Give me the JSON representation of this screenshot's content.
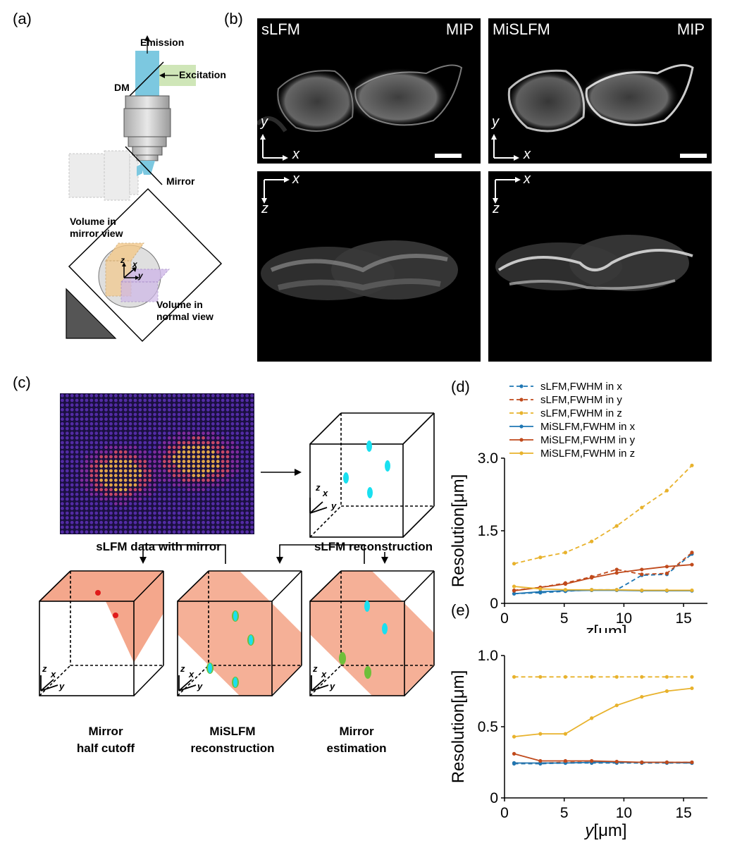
{
  "panels": {
    "a": "(a)",
    "b": "(b)",
    "c": "(c)",
    "d": "(d)",
    "e": "(e)"
  },
  "a": {
    "emission": "Emission",
    "excitation": "Excitation",
    "dm": "DM",
    "mirror": "Mirror",
    "vol_mirror": "Volume in\nmirror view",
    "vol_normal": "Volume in\nnormal view",
    "ax_z": "z",
    "ax_x": "x",
    "ax_y": "y"
  },
  "b": {
    "slfm": "sLFM",
    "mislfm": "MiSLFM",
    "mip": "MIP",
    "ax_x": "x",
    "ax_y": "y",
    "ax_z": "z"
  },
  "c": {
    "data_caption": "sLFM data with mirror",
    "recon_caption": "sLFM reconstruction",
    "cutoff_caption_1": "Mirror",
    "cutoff_caption_2": "half cutoff",
    "mislfm_caption_1": "MiSLFM",
    "mislfm_caption_2": "reconstruction",
    "est_caption_1": "Mirror",
    "est_caption_2": "estimation",
    "ax_z": "z",
    "ax_x": "x",
    "ax_y": "y"
  },
  "colors": {
    "blue": "#1f77b4",
    "orange": "#c04a1c",
    "gold": "#e8b22c",
    "cyan": "#19e0f0",
    "green": "#6fbf3a",
    "salmon": "#f4a78c",
    "red": "#e01a1a"
  },
  "chart_data": [
    {
      "type": "line",
      "xlabel": "z[μm]",
      "ylabel": "Resolution[μm]",
      "xlim": [
        0,
        17
      ],
      "ylim": [
        0,
        3.0
      ],
      "xticks": [
        0,
        5,
        10,
        15
      ],
      "yticks": [
        0,
        1.5,
        3.0
      ],
      "ytick_labels": [
        "0",
        "1.5",
        "3.0"
      ],
      "legend": "top",
      "x": [
        0.8,
        3.0,
        5.1,
        7.3,
        9.4,
        11.5,
        13.6,
        15.7
      ],
      "series": [
        {
          "name": "sLFM,FWHM in x",
          "style": "dashed",
          "color": "#1f77b4",
          "values": [
            0.2,
            0.22,
            0.25,
            0.28,
            0.28,
            0.58,
            0.6,
            1.02
          ]
        },
        {
          "name": "sLFM,FWHM in y",
          "style": "dashed",
          "color": "#c04a1c",
          "values": [
            0.27,
            0.33,
            0.42,
            0.55,
            0.7,
            0.6,
            0.62,
            1.05
          ]
        },
        {
          "name": "sLFM,FWHM in z",
          "style": "dashed",
          "color": "#e8b22c",
          "values": [
            0.82,
            0.95,
            1.05,
            1.28,
            1.6,
            1.98,
            2.33,
            2.85
          ]
        },
        {
          "name": "MiSLFM,FWHM in x",
          "style": "solid",
          "color": "#1f77b4",
          "values": [
            0.2,
            0.24,
            0.26,
            0.27,
            0.27,
            0.26,
            0.26,
            0.26
          ]
        },
        {
          "name": "MiSLFM,FWHM in y",
          "style": "solid",
          "color": "#c04a1c",
          "values": [
            0.26,
            0.33,
            0.4,
            0.53,
            0.63,
            0.7,
            0.76,
            0.8
          ]
        },
        {
          "name": "MiSLFM,FWHM in z",
          "style": "solid",
          "color": "#e8b22c",
          "values": [
            0.35,
            0.3,
            0.28,
            0.28,
            0.28,
            0.27,
            0.27,
            0.27
          ]
        }
      ]
    },
    {
      "type": "line",
      "xlabel": "y[μm]",
      "ylabel": "Resolution[μm]",
      "xlim": [
        0,
        17
      ],
      "ylim": [
        0,
        1.0
      ],
      "xticks": [
        0,
        5,
        10,
        15
      ],
      "yticks": [
        0,
        0.5,
        1.0
      ],
      "ytick_labels": [
        "0",
        "0.5",
        "1.0"
      ],
      "x": [
        0.8,
        3.0,
        5.1,
        7.3,
        9.4,
        11.5,
        13.6,
        15.7
      ],
      "series": [
        {
          "name": "sLFM,FWHM in x",
          "style": "dashed",
          "color": "#1f77b4",
          "values": [
            0.24,
            0.24,
            0.245,
            0.245,
            0.245,
            0.245,
            0.245,
            0.245
          ]
        },
        {
          "name": "sLFM,FWHM in y",
          "style": "dashed",
          "color": "#c04a1c",
          "values": [
            0.245,
            0.245,
            0.25,
            0.25,
            0.25,
            0.25,
            0.25,
            0.25
          ]
        },
        {
          "name": "sLFM,FWHM in z",
          "style": "dashed",
          "color": "#e8b22c",
          "values": [
            0.85,
            0.85,
            0.85,
            0.85,
            0.85,
            0.85,
            0.85,
            0.85
          ]
        },
        {
          "name": "MiSLFM,FWHM in x",
          "style": "solid",
          "color": "#1f77b4",
          "values": [
            0.245,
            0.245,
            0.245,
            0.25,
            0.25,
            0.25,
            0.25,
            0.245
          ]
        },
        {
          "name": "MiSLFM,FWHM in y",
          "style": "solid",
          "color": "#c04a1c",
          "values": [
            0.31,
            0.26,
            0.26,
            0.26,
            0.255,
            0.25,
            0.25,
            0.25
          ]
        },
        {
          "name": "MiSLFM,FWHM in z",
          "style": "solid",
          "color": "#e8b22c",
          "values": [
            0.43,
            0.45,
            0.45,
            0.56,
            0.65,
            0.71,
            0.75,
            0.77
          ]
        }
      ]
    }
  ]
}
